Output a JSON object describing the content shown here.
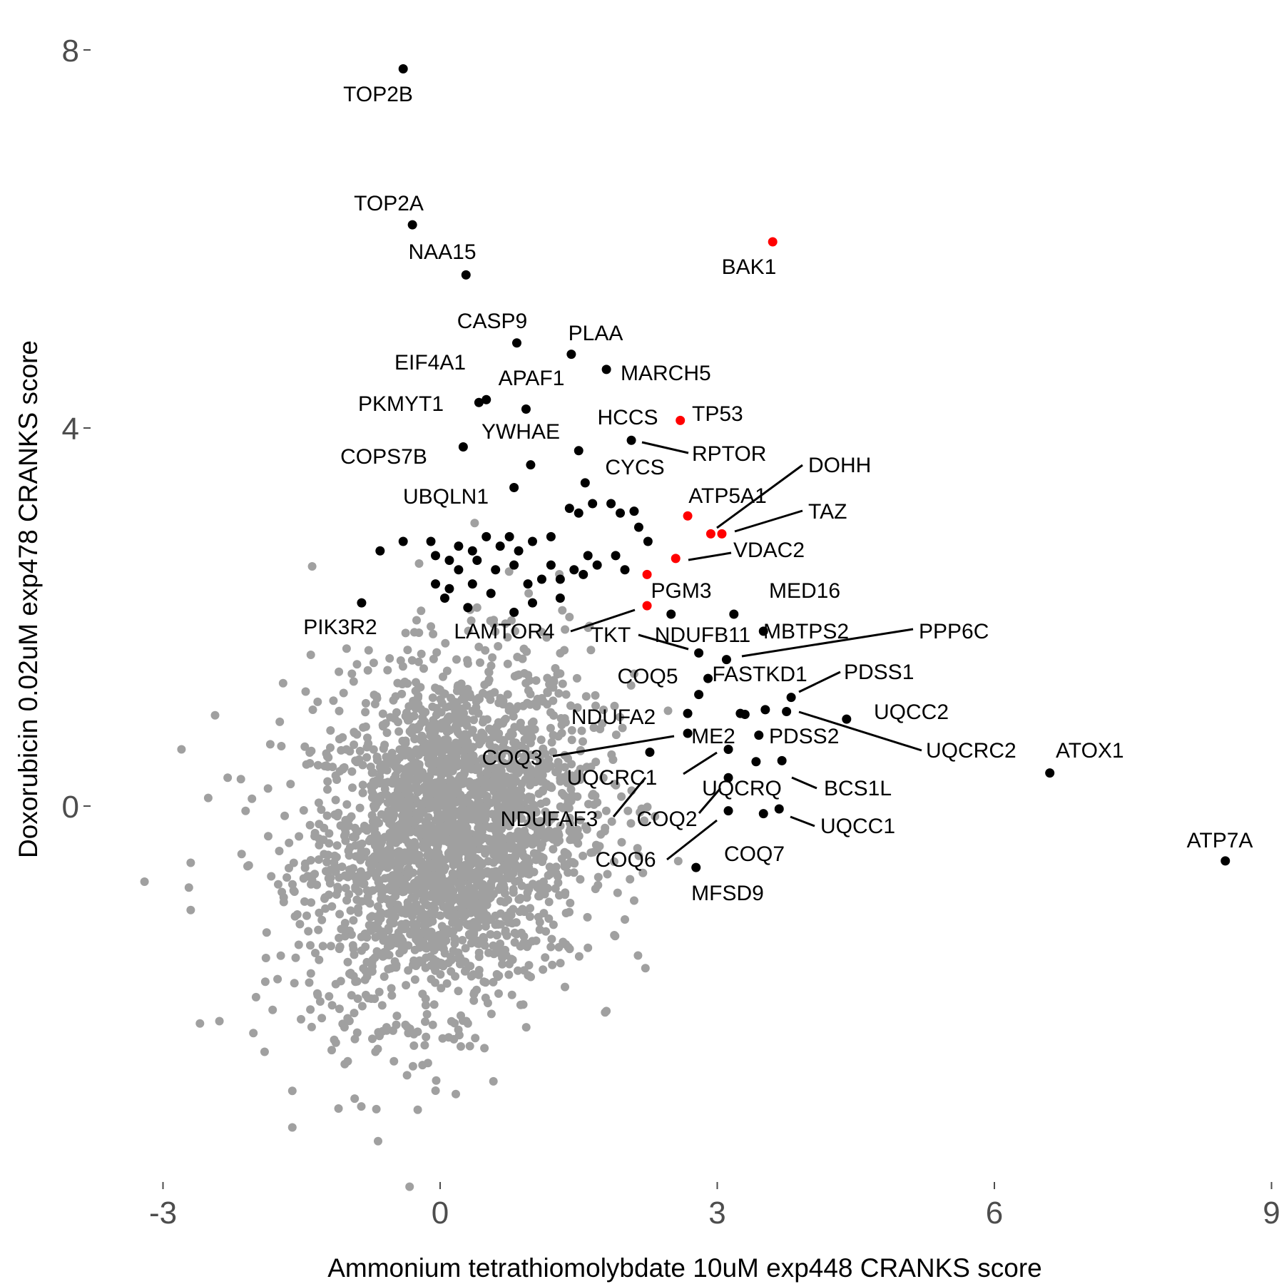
{
  "chart_data": {
    "type": "scatter",
    "xlabel": "Ammonium tetrathiomolybdate 10uM exp448 CRANKS score",
    "ylabel": "Doxorubicin 0.02uM exp478 CRANKS score",
    "xlim": [
      -3.1,
      9.1
    ],
    "ylim": [
      -3.9,
      8.3
    ],
    "x_ticks": [
      -3,
      0,
      3,
      6,
      9
    ],
    "x_tick_labels": [
      "-3",
      "0",
      "3",
      "6",
      "9"
    ],
    "y_ticks": [
      0,
      4,
      8
    ],
    "y_tick_labels": [
      "0",
      "4",
      "8"
    ],
    "grid": false,
    "legend": "none",
    "colors": {
      "background_points": "#a0a0a0",
      "hit_points": "#000000",
      "highlight_points": "#ff0000",
      "text": "#000000",
      "tick_text": "#4d4d4d"
    },
    "background_cloud": {
      "description_color": "gray",
      "center": [
        0.1,
        -0.3
      ],
      "spread": [
        0.75,
        0.9
      ],
      "outliers": [
        [
          -3.2,
          -0.8
        ],
        [
          -2.7,
          -1.1
        ],
        [
          -2.6,
          -2.3
        ],
        [
          -2.7,
          -0.6
        ],
        [
          -1.6,
          -3.4
        ],
        [
          -1.1,
          -3.2
        ],
        [
          -1.0,
          -2.7
        ],
        [
          -0.5,
          -2.7
        ],
        [
          -1.9,
          -2.6
        ],
        [
          -2.8,
          0.6
        ],
        [
          -2.3,
          0.3
        ],
        [
          -1.7,
          1.3
        ],
        [
          -1.4,
          1.6
        ],
        [
          -0.9,
          1.5
        ],
        [
          -0.1,
          1.9
        ],
        [
          0.4,
          2.1
        ],
        [
          1.4,
          2.0
        ],
        [
          2.1,
          1.4
        ],
        [
          2.1,
          -1.0
        ],
        [
          2.0,
          -1.2
        ],
        [
          1.6,
          -1.5
        ],
        [
          0.9,
          -2.1
        ],
        [
          0.3,
          -2.3
        ],
        [
          -0.7,
          -2.6
        ]
      ]
    },
    "series": [
      {
        "color": "#000000",
        "points": [
          {
            "x": -0.4,
            "y": 7.8,
            "label": "TOP2B"
          },
          {
            "x": -0.3,
            "y": 6.15,
            "label": "TOP2A"
          },
          {
            "x": 0.28,
            "y": 5.62,
            "label": "NAA15"
          },
          {
            "x": 0.83,
            "y": 4.9,
            "label": "CASP9"
          },
          {
            "x": 1.42,
            "y": 4.78,
            "label": "PLAA"
          },
          {
            "x": 1.8,
            "y": 4.62,
            "label": "MARCH5"
          },
          {
            "x": 0.5,
            "y": 4.3,
            "label": "EIF4A1"
          },
          {
            "x": 0.93,
            "y": 4.2,
            "label": "APAF1"
          },
          {
            "x": 0.42,
            "y": 4.27,
            "label": "PKMYT1"
          },
          {
            "x": 2.07,
            "y": 3.87,
            "label": "HCCS"
          },
          {
            "x": 0.25,
            "y": 3.8,
            "label": "COPS7B"
          },
          {
            "x": 1.5,
            "y": 3.76,
            "label": "YWHAE"
          },
          {
            "x": 0.98,
            "y": 3.61,
            "label": "YWHAE-b"
          },
          {
            "x": 1.57,
            "y": 3.42,
            "label": "CYCS"
          },
          {
            "x": 0.8,
            "y": 3.37,
            "label": "UBQLN1"
          },
          {
            "x": -0.85,
            "y": 2.15,
            "label": "PIK3R2"
          },
          {
            "x": 2.5,
            "y": 2.03,
            "label": "PGM3"
          },
          {
            "x": 3.18,
            "y": 2.03,
            "label": "MED16"
          },
          {
            "x": 3.5,
            "y": 1.85,
            "label": "MBTPS2"
          },
          {
            "x": 2.8,
            "y": 1.62,
            "label": "TKT"
          },
          {
            "x": 3.1,
            "y": 1.55,
            "label": "NDUFB11"
          },
          {
            "x": 2.9,
            "y": 1.35,
            "label": "FASTKD1"
          },
          {
            "x": 2.8,
            "y": 1.18,
            "label": "COQ5"
          },
          {
            "x": 3.8,
            "y": 1.15,
            "label": "PDSS1"
          },
          {
            "x": 2.68,
            "y": 0.98,
            "label": "NDUFA2"
          },
          {
            "x": 3.25,
            "y": 0.98,
            "label": "NDUFA2-b"
          },
          {
            "x": 3.3,
            "y": 0.97,
            "label": "NDUFA2-c"
          },
          {
            "x": 3.52,
            "y": 1.02,
            "label": "UQCC2-b"
          },
          {
            "x": 3.75,
            "y": 1.0,
            "label": "UQCRC2"
          },
          {
            "x": 4.4,
            "y": 0.92,
            "label": "UQCC2"
          },
          {
            "x": 6.6,
            "y": 0.35,
            "label": "ATOX1"
          },
          {
            "x": 2.68,
            "y": 0.77,
            "label": "ME2"
          },
          {
            "x": 3.45,
            "y": 0.75,
            "label": "PDSS2"
          },
          {
            "x": 2.27,
            "y": 0.57,
            "label": "COQ3"
          },
          {
            "x": 3.12,
            "y": 0.6,
            "label": "UQCRC1"
          },
          {
            "x": 3.42,
            "y": 0.47,
            "label": "UQCRQ"
          },
          {
            "x": 3.7,
            "y": 0.48,
            "label": "BCS1L"
          },
          {
            "x": 3.12,
            "y": 0.3,
            "label": "NDUFAF3"
          },
          {
            "x": 3.12,
            "y": -0.05,
            "label": "COQ2"
          },
          {
            "x": 3.5,
            "y": -0.08,
            "label": "COQ7"
          },
          {
            "x": 3.67,
            "y": -0.03,
            "label": "UQCC1"
          },
          {
            "x": 2.77,
            "y": -0.65,
            "label": "MFSD9"
          },
          {
            "x": 8.5,
            "y": -0.58,
            "label": "ATP7A"
          }
        ]
      },
      {
        "color": "#ff0000",
        "points": [
          {
            "x": 3.6,
            "y": 5.97,
            "label": "BAK1"
          },
          {
            "x": 2.6,
            "y": 4.08,
            "label": "TP53"
          },
          {
            "x": 2.68,
            "y": 3.07,
            "label": "ATP5A1"
          },
          {
            "x": 2.93,
            "y": 2.88,
            "label": "DOHH"
          },
          {
            "x": 3.05,
            "y": 2.88,
            "label": "TAZ"
          },
          {
            "x": 2.55,
            "y": 2.62,
            "label": "VDAC2"
          },
          {
            "x": 2.24,
            "y": 2.45,
            "label": "PGM3-r"
          },
          {
            "x": 2.24,
            "y": 2.12,
            "label": "LAMTOR4"
          }
        ]
      }
    ],
    "extra_hits": [
      [
        -0.65,
        2.7
      ],
      [
        -0.4,
        2.8
      ],
      [
        -0.1,
        2.8
      ],
      [
        0.2,
        2.75
      ],
      [
        0.35,
        2.7
      ],
      [
        0.5,
        2.85
      ],
      [
        0.65,
        2.75
      ],
      [
        0.75,
        2.85
      ],
      [
        0.85,
        2.7
      ],
      [
        1.0,
        2.8
      ],
      [
        1.2,
        2.85
      ],
      [
        1.4,
        3.15
      ],
      [
        1.5,
        3.1
      ],
      [
        1.65,
        3.2
      ],
      [
        1.85,
        3.2
      ],
      [
        1.95,
        3.1
      ],
      [
        2.1,
        3.12
      ],
      [
        2.15,
        2.95
      ],
      [
        2.25,
        2.8
      ],
      [
        1.6,
        2.65
      ],
      [
        1.45,
        2.5
      ],
      [
        1.2,
        2.55
      ],
      [
        0.8,
        2.55
      ],
      [
        0.6,
        2.5
      ],
      [
        0.4,
        2.6
      ],
      [
        0.1,
        2.6
      ],
      [
        -0.05,
        2.65
      ],
      [
        0.2,
        2.5
      ],
      [
        -0.05,
        2.35
      ],
      [
        0.1,
        2.3
      ],
      [
        0.35,
        2.35
      ],
      [
        0.55,
        2.25
      ],
      [
        0.95,
        2.35
      ],
      [
        1.1,
        2.4
      ],
      [
        1.3,
        2.4
      ],
      [
        1.55,
        2.45
      ],
      [
        1.0,
        2.15
      ],
      [
        1.3,
        2.2
      ],
      [
        0.8,
        2.05
      ],
      [
        0.3,
        2.1
      ],
      [
        0.05,
        2.2
      ],
      [
        1.7,
        2.55
      ],
      [
        1.9,
        2.65
      ],
      [
        2.0,
        2.5
      ]
    ],
    "labels": [
      "TOP2B",
      "TOP2A",
      "NAA15",
      "BAK1",
      "CASP9",
      "PLAA",
      "EIF4A1",
      "MARCH5",
      "APAF1",
      "PKMYT1",
      "HCCS",
      "TP53",
      "YWHAE",
      "RPTOR",
      "COPS7B",
      "CYCS",
      "DOHH",
      "UBQLN1",
      "ATP5A1",
      "TAZ",
      "VDAC2",
      "PGM3",
      "MED16",
      "PIK3R2",
      "LAMTOR4",
      "TKT",
      "MBTPS2",
      "PPP6C",
      "NDUFB11",
      "COQ5",
      "FASTKD1",
      "PDSS1",
      "NDUFA2",
      "UQCC2",
      "ME2",
      "PDSS2",
      "COQ3",
      "UQCRC2",
      "ATOX1",
      "UQCRC1",
      "UQCRQ",
      "BCS1L",
      "NDUFAF3",
      "COQ2",
      "UQCC1",
      "COQ6",
      "COQ7",
      "MFSD9",
      "ATP7A"
    ]
  }
}
